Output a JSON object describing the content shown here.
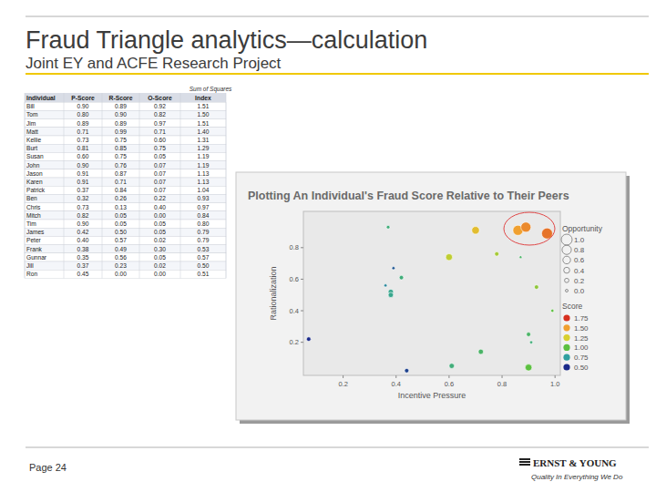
{
  "slide": {
    "title": "Fraud Triangle analytics—calculation",
    "subtitle": "Joint EY and ACFE Research Project",
    "page": "Page 24",
    "logo": "ERNST & YOUNG",
    "tagline": "Quality In Everything We Do"
  },
  "table": {
    "caption": "Sum of Squares",
    "columns": [
      "Individual",
      "P-Score",
      "R-Score",
      "O-Score",
      "Index"
    ],
    "rows": [
      [
        "Bill",
        "0.90",
        "0.89",
        "0.92",
        "1.51"
      ],
      [
        "Tom",
        "0.80",
        "0.90",
        "0.82",
        "1.50"
      ],
      [
        "Jim",
        "0.89",
        "0.89",
        "0.97",
        "1.51"
      ],
      [
        "Matt",
        "0.71",
        "0.99",
        "0.71",
        "1.40"
      ],
      [
        "Kellie",
        "0.73",
        "0.75",
        "0.60",
        "1.31"
      ],
      [
        "Burt",
        "0.81",
        "0.85",
        "0.75",
        "1.29"
      ],
      [
        "Susan",
        "0.60",
        "0.75",
        "0.05",
        "1.19"
      ],
      [
        "John",
        "0.90",
        "0.76",
        "0.07",
        "1.19"
      ],
      [
        "Jason",
        "0.91",
        "0.87",
        "0.07",
        "1.13"
      ],
      [
        "Karen",
        "0.91",
        "0.71",
        "0.07",
        "1.13"
      ],
      [
        "Patrick",
        "0.37",
        "0.84",
        "0.07",
        "1.04"
      ],
      [
        "Ben",
        "0.32",
        "0.26",
        "0.22",
        "0.93"
      ],
      [
        "Chris",
        "0.73",
        "0.13",
        "0.40",
        "0.97"
      ],
      [
        "Mitch",
        "0.82",
        "0.05",
        "0.00",
        "0.84"
      ],
      [
        "Tim",
        "0.90",
        "0.05",
        "0.05",
        "0.80"
      ],
      [
        "James",
        "0.42",
        "0.50",
        "0.05",
        "0.79"
      ],
      [
        "Peter",
        "0.40",
        "0.57",
        "0.02",
        "0.79"
      ],
      [
        "Frank",
        "0.38",
        "0.49",
        "0.30",
        "0.53"
      ],
      [
        "Gunnar",
        "0.35",
        "0.56",
        "0.05",
        "0.57"
      ],
      [
        "Jill",
        "0.37",
        "0.23",
        "0.02",
        "0.50"
      ],
      [
        "Ron",
        "0.45",
        "0.00",
        "0.00",
        "0.51"
      ]
    ]
  },
  "chart_data": {
    "type": "scatter",
    "title": "Plotting An Individual's Fraud Score Relative to Their Peers",
    "x_label": "Incentive Pressure",
    "y_label": "Rationalization",
    "x": [
      0.07,
      0.37,
      0.39,
      0.42,
      0.36,
      0.38,
      0.38,
      0.44,
      0.61,
      0.6,
      0.7,
      0.72,
      0.78,
      0.86,
      0.89,
      0.97,
      0.87,
      0.9,
      0.91,
      0.93,
      0.9,
      0.99
    ],
    "values": [
      0.22,
      0.93,
      0.67,
      0.61,
      0.56,
      0.52,
      0.5,
      0.02,
      0.05,
      0.74,
      0.91,
      0.14,
      0.76,
      0.91,
      0.93,
      0.89,
      0.74,
      0.25,
      0.2,
      0.55,
      0.04,
      0.4
    ],
    "size": [
      0.2,
      0.1,
      0.05,
      0.2,
      0.05,
      0.3,
      0.3,
      0.2,
      0.3,
      0.5,
      0.6,
      0.3,
      0.2,
      0.9,
      0.9,
      1.0,
      0.0,
      0.2,
      0.05,
      0.2,
      0.5,
      0.05
    ],
    "score": [
      0.5,
      0.85,
      0.6,
      0.85,
      0.7,
      0.8,
      0.8,
      0.55,
      0.85,
      1.2,
      1.35,
      0.9,
      1.15,
      1.5,
      1.55,
      1.6,
      0.9,
      0.9,
      0.85,
      1.1,
      1.0,
      1.0
    ],
    "xlim": [
      0.05,
      1.02
    ],
    "ylim": [
      -0.01,
      1.03
    ],
    "xticks": [
      0.2,
      0.4,
      0.6,
      0.8,
      {
        "value": 1,
        "label": "1.0"
      }
    ],
    "yticks": [
      0.2,
      0.4,
      0.6,
      0.8
    ],
    "grid": false,
    "size_legend": {
      "title": "Opportunity",
      "ticks": [
        {
          "value": 1,
          "label": "1.0"
        },
        0.8,
        0.6,
        0.4,
        0.2,
        {
          "value": 0,
          "label": "0.0"
        }
      ]
    },
    "score_legend": {
      "title": "Score",
      "ticks": [
        1.75,
        {
          "value": 1.5,
          "label": "1.50"
        },
        1.25,
        {
          "value": 1,
          "label": "1.00"
        },
        0.75,
        {
          "value": 0.5,
          "label": "0.50"
        }
      ],
      "colors": [
        "#d7301f",
        "#f0a030",
        "#d8d030",
        "#5cc040",
        "#30a0a0",
        "#1a2a8a"
      ]
    }
  }
}
